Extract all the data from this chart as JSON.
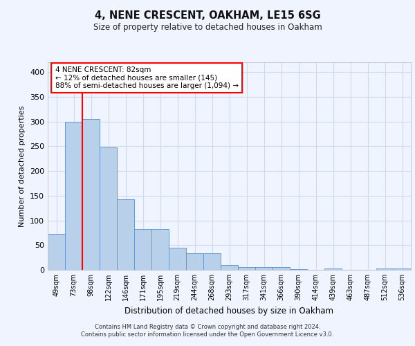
{
  "title1": "4, NENE CRESCENT, OAKHAM, LE15 6SG",
  "title2": "Size of property relative to detached houses in Oakham",
  "xlabel": "Distribution of detached houses by size in Oakham",
  "ylabel": "Number of detached properties",
  "categories": [
    "49sqm",
    "73sqm",
    "98sqm",
    "122sqm",
    "146sqm",
    "171sqm",
    "195sqm",
    "219sqm",
    "244sqm",
    "268sqm",
    "293sqm",
    "317sqm",
    "341sqm",
    "366sqm",
    "390sqm",
    "414sqm",
    "439sqm",
    "463sqm",
    "487sqm",
    "512sqm",
    "536sqm"
  ],
  "values": [
    73,
    300,
    305,
    248,
    143,
    82,
    82,
    45,
    33,
    33,
    10,
    6,
    6,
    6,
    2,
    0,
    3,
    0,
    0,
    3,
    3
  ],
  "bar_color": "#b8d0ea",
  "bar_edge_color": "#6699cc",
  "property_line_x": 1.5,
  "annotation_text": "4 NENE CRESCENT: 82sqm\n← 12% of detached houses are smaller (145)\n88% of semi-detached houses are larger (1,094) →",
  "annotation_box_color": "white",
  "annotation_box_edge": "red",
  "vline_color": "red",
  "ylim": [
    0,
    420
  ],
  "yticks": [
    0,
    50,
    100,
    150,
    200,
    250,
    300,
    350,
    400
  ],
  "grid_color": "#d0d8ec",
  "footer1": "Contains HM Land Registry data © Crown copyright and database right 2024.",
  "footer2": "Contains public sector information licensed under the Open Government Licence v3.0.",
  "bg_color": "#f0f4ff"
}
